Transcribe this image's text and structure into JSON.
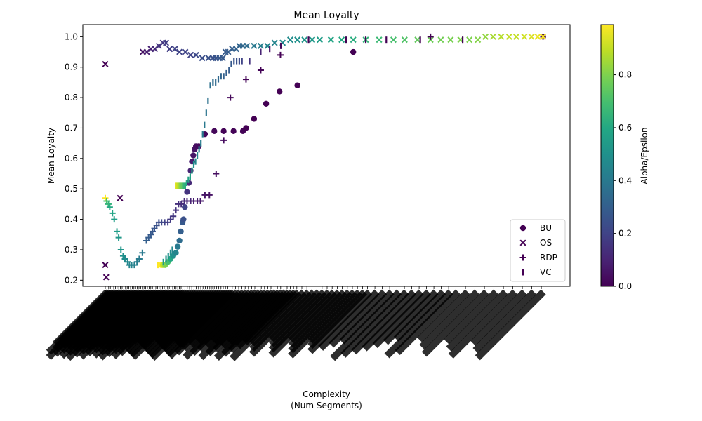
{
  "chart_data": {
    "type": "scatter",
    "title": "Mean Loyalty",
    "xlabel_lines": [
      "Complexity",
      "(Num Segments)"
    ],
    "ylabel": "Mean Loyalty",
    "ylim": [
      0.18,
      1.04
    ],
    "yticks": [
      0.2,
      0.3,
      0.4,
      0.5,
      0.6,
      0.7,
      0.8,
      0.9,
      1.0
    ],
    "ytick_labels": [
      "0.2",
      "0.3",
      "0.4",
      "0.5",
      "0.6",
      "0.7",
      "0.8",
      "0.9",
      "1.0"
    ],
    "xlim": [
      0,
      100
    ],
    "x_tick_labels_legible": false,
    "x_tick_label_color": "#000000",
    "legend": {
      "placement": "lower-right",
      "entries": [
        {
          "label": "BU",
          "marker": "circle"
        },
        {
          "label": "OS",
          "marker": "x"
        },
        {
          "label": "RDP",
          "marker": "plus"
        },
        {
          "label": "VC",
          "marker": "vline"
        }
      ]
    },
    "colorbar": {
      "label": "Alpha/Epsilon",
      "colormap": "viridis",
      "range": [
        0,
        0.99
      ],
      "ticks": [
        0.0,
        0.2,
        0.4,
        0.6,
        0.8
      ],
      "tick_labels": [
        "0.0",
        "0.2",
        "0.4",
        "0.6",
        "0.8"
      ]
    },
    "series": [
      {
        "name": "BU",
        "marker": "circle",
        "points": [
          [
            13.5,
            0.25,
            0.99
          ],
          [
            13.9,
            0.25,
            0.9
          ],
          [
            14.4,
            0.25,
            0.8
          ],
          [
            15.0,
            0.26,
            0.7
          ],
          [
            15.6,
            0.27,
            0.6
          ],
          [
            16.2,
            0.28,
            0.5
          ],
          [
            16.8,
            0.29,
            0.45
          ],
          [
            17.2,
            0.31,
            0.4
          ],
          [
            17.6,
            0.33,
            0.35
          ],
          [
            17.9,
            0.36,
            0.3
          ],
          [
            18.3,
            0.39,
            0.28
          ],
          [
            18.5,
            0.4,
            0.25
          ],
          [
            18.8,
            0.44,
            0.2
          ],
          [
            19.3,
            0.49,
            0.15
          ],
          [
            19.7,
            0.52,
            0.12
          ],
          [
            20.1,
            0.56,
            0.1
          ],
          [
            20.4,
            0.59,
            0.08
          ],
          [
            20.7,
            0.61,
            0.06
          ],
          [
            21.0,
            0.63,
            0.05
          ],
          [
            21.3,
            0.64,
            0.04
          ],
          [
            21.9,
            0.64,
            0.03
          ],
          [
            23.3,
            0.68,
            0.02
          ],
          [
            25.4,
            0.69,
            0.02
          ],
          [
            27.5,
            0.69,
            0.01
          ],
          [
            29.7,
            0.69,
            0.01
          ],
          [
            31.8,
            0.69,
            0.01
          ],
          [
            32.5,
            0.7,
            0.0
          ],
          [
            34.3,
            0.73,
            0.0
          ],
          [
            37.0,
            0.78,
            0.0
          ],
          [
            40.0,
            0.82,
            0.0
          ],
          [
            44.0,
            0.84,
            0.0
          ],
          [
            56.5,
            0.95,
            0.0
          ],
          [
            99.0,
            1.0,
            0.0
          ]
        ]
      },
      {
        "name": "OS",
        "marker": "x",
        "points": [
          [
            1.0,
            0.91,
            0.0
          ],
          [
            1.0,
            0.25,
            0.0
          ],
          [
            1.2,
            0.21,
            0.0
          ],
          [
            4.3,
            0.47,
            0.0
          ],
          [
            9.4,
            0.95,
            0.05
          ],
          [
            10.3,
            0.95,
            0.08
          ],
          [
            11.2,
            0.96,
            0.1
          ],
          [
            12.1,
            0.96,
            0.12
          ],
          [
            13.0,
            0.97,
            0.15
          ],
          [
            13.9,
            0.98,
            0.16
          ],
          [
            14.6,
            0.98,
            0.18
          ],
          [
            15.4,
            0.96,
            0.18
          ],
          [
            16.6,
            0.96,
            0.2
          ],
          [
            17.6,
            0.95,
            0.2
          ],
          [
            18.9,
            0.95,
            0.2
          ],
          [
            20.1,
            0.94,
            0.2
          ],
          [
            21.3,
            0.94,
            0.22
          ],
          [
            22.7,
            0.93,
            0.24
          ],
          [
            24.1,
            0.93,
            0.25
          ],
          [
            25.1,
            0.93,
            0.25
          ],
          [
            25.8,
            0.93,
            0.26
          ],
          [
            26.6,
            0.93,
            0.27
          ],
          [
            27.3,
            0.93,
            0.28
          ],
          [
            27.9,
            0.95,
            0.28
          ],
          [
            28.5,
            0.95,
            0.29
          ],
          [
            29.4,
            0.96,
            0.3
          ],
          [
            30.3,
            0.96,
            0.31
          ],
          [
            31.0,
            0.97,
            0.32
          ],
          [
            31.8,
            0.97,
            0.33
          ],
          [
            32.7,
            0.97,
            0.35
          ],
          [
            34.3,
            0.97,
            0.4
          ],
          [
            35.8,
            0.97,
            0.42
          ],
          [
            37.3,
            0.97,
            0.44
          ],
          [
            38.9,
            0.98,
            0.45
          ],
          [
            40.7,
            0.98,
            0.47
          ],
          [
            42.4,
            0.99,
            0.48
          ],
          [
            44.0,
            0.99,
            0.5
          ],
          [
            45.6,
            0.99,
            0.52
          ],
          [
            47.3,
            0.99,
            0.53
          ],
          [
            49.0,
            0.99,
            0.55
          ],
          [
            51.5,
            0.99,
            0.58
          ],
          [
            53.9,
            0.99,
            0.6
          ],
          [
            56.5,
            0.99,
            0.62
          ],
          [
            59.3,
            0.99,
            0.65
          ],
          [
            62.3,
            0.99,
            0.67
          ],
          [
            65.5,
            0.99,
            0.7
          ],
          [
            68.0,
            0.99,
            0.72
          ],
          [
            70.9,
            0.99,
            0.75
          ],
          [
            73.8,
            0.99,
            0.77
          ],
          [
            76.1,
            0.99,
            0.78
          ],
          [
            78.3,
            0.99,
            0.79
          ],
          [
            80.5,
            0.99,
            0.8
          ],
          [
            82.5,
            0.99,
            0.8
          ],
          [
            84.4,
            0.99,
            0.81
          ],
          [
            86.1,
            1.0,
            0.83
          ],
          [
            87.8,
            1.0,
            0.86
          ],
          [
            89.6,
            1.0,
            0.88
          ],
          [
            91.4,
            1.0,
            0.9
          ],
          [
            93.0,
            1.0,
            0.9
          ],
          [
            94.8,
            1.0,
            0.92
          ],
          [
            96.4,
            1.0,
            0.94
          ],
          [
            97.8,
            1.0,
            0.96
          ],
          [
            99.0,
            1.0,
            0.98
          ]
        ]
      },
      {
        "name": "RDP",
        "marker": "plus",
        "points": [
          [
            1.0,
            0.47,
            0.99
          ],
          [
            1.3,
            0.46,
            0.7
          ],
          [
            1.7,
            0.45,
            0.65
          ],
          [
            2.0,
            0.44,
            0.6
          ],
          [
            2.6,
            0.42,
            0.58
          ],
          [
            3.0,
            0.4,
            0.56
          ],
          [
            3.6,
            0.36,
            0.55
          ],
          [
            4.0,
            0.34,
            0.53
          ],
          [
            4.5,
            0.3,
            0.52
          ],
          [
            5.0,
            0.28,
            0.5
          ],
          [
            5.4,
            0.27,
            0.48
          ],
          [
            6.0,
            0.26,
            0.46
          ],
          [
            6.4,
            0.25,
            0.45
          ],
          [
            6.9,
            0.25,
            0.44
          ],
          [
            7.5,
            0.25,
            0.43
          ],
          [
            8.1,
            0.26,
            0.42
          ],
          [
            8.6,
            0.27,
            0.41
          ],
          [
            9.3,
            0.29,
            0.4
          ],
          [
            10.2,
            0.33,
            0.3
          ],
          [
            10.7,
            0.34,
            0.29
          ],
          [
            11.2,
            0.35,
            0.28
          ],
          [
            11.6,
            0.36,
            0.27
          ],
          [
            12.0,
            0.37,
            0.26
          ],
          [
            12.5,
            0.38,
            0.25
          ],
          [
            13.0,
            0.39,
            0.24
          ],
          [
            13.6,
            0.39,
            0.22
          ],
          [
            14.3,
            0.39,
            0.2
          ],
          [
            15.0,
            0.39,
            0.18
          ],
          [
            15.6,
            0.4,
            0.17
          ],
          [
            16.2,
            0.41,
            0.16
          ],
          [
            16.8,
            0.43,
            0.15
          ],
          [
            17.4,
            0.45,
            0.14
          ],
          [
            18.0,
            0.45,
            0.13
          ],
          [
            18.7,
            0.46,
            0.12
          ],
          [
            19.3,
            0.46,
            0.11
          ],
          [
            20.1,
            0.46,
            0.1
          ],
          [
            20.8,
            0.46,
            0.09
          ],
          [
            21.6,
            0.46,
            0.08
          ],
          [
            22.3,
            0.46,
            0.07
          ],
          [
            23.3,
            0.48,
            0.06
          ],
          [
            24.3,
            0.48,
            0.05
          ],
          [
            25.8,
            0.55,
            0.04
          ],
          [
            27.5,
            0.66,
            0.03
          ],
          [
            29.0,
            0.8,
            0.02
          ],
          [
            32.5,
            0.86,
            0.01
          ],
          [
            35.8,
            0.89,
            0.01
          ],
          [
            40.2,
            0.94,
            0.0
          ],
          [
            73.8,
            1.0,
            0.0
          ]
        ]
      },
      {
        "name": "VC",
        "marker": "vline",
        "points": [
          [
            12.8,
            0.25,
            0.99
          ],
          [
            14.0,
            0.26,
            0.55
          ],
          [
            14.6,
            0.27,
            0.52
          ],
          [
            15.1,
            0.28,
            0.5
          ],
          [
            15.6,
            0.29,
            0.48
          ],
          [
            16.0,
            0.3,
            0.46
          ],
          [
            16.8,
            0.51,
            0.95
          ],
          [
            17.1,
            0.51,
            0.9
          ],
          [
            17.4,
            0.51,
            0.85
          ],
          [
            17.7,
            0.51,
            0.8
          ],
          [
            18.0,
            0.51,
            0.75
          ],
          [
            18.3,
            0.51,
            0.7
          ],
          [
            18.6,
            0.51,
            0.65
          ],
          [
            18.9,
            0.51,
            0.62
          ],
          [
            19.2,
            0.52,
            0.6
          ],
          [
            19.6,
            0.53,
            0.58
          ],
          [
            20.0,
            0.54,
            0.57
          ],
          [
            20.4,
            0.56,
            0.56
          ],
          [
            20.8,
            0.58,
            0.5
          ],
          [
            21.2,
            0.59,
            0.47
          ],
          [
            21.6,
            0.61,
            0.45
          ],
          [
            22.0,
            0.63,
            0.43
          ],
          [
            22.4,
            0.65,
            0.42
          ],
          [
            22.8,
            0.68,
            0.41
          ],
          [
            23.2,
            0.71,
            0.4
          ],
          [
            23.6,
            0.75,
            0.38
          ],
          [
            24.0,
            0.79,
            0.37
          ],
          [
            24.5,
            0.84,
            0.36
          ],
          [
            25.1,
            0.85,
            0.35
          ],
          [
            25.7,
            0.85,
            0.34
          ],
          [
            26.3,
            0.86,
            0.33
          ],
          [
            26.9,
            0.87,
            0.32
          ],
          [
            27.5,
            0.87,
            0.31
          ],
          [
            28.1,
            0.88,
            0.3
          ],
          [
            28.7,
            0.89,
            0.29
          ],
          [
            29.2,
            0.91,
            0.28
          ],
          [
            29.8,
            0.92,
            0.26
          ],
          [
            30.4,
            0.92,
            0.25
          ],
          [
            31.0,
            0.92,
            0.23
          ],
          [
            31.6,
            0.92,
            0.2
          ],
          [
            33.3,
            0.92,
            0.15
          ],
          [
            35.8,
            0.95,
            0.1
          ],
          [
            37.8,
            0.96,
            0.05
          ],
          [
            40.3,
            0.97,
            0.02
          ],
          [
            46.5,
            0.99,
            0.01
          ],
          [
            54.9,
            0.99,
            0.0
          ],
          [
            59.3,
            0.99,
            0.0
          ],
          [
            63.9,
            0.99,
            0.0
          ],
          [
            71.5,
            0.99,
            0.0
          ],
          [
            81.0,
            0.99,
            0.0
          ]
        ]
      }
    ]
  }
}
